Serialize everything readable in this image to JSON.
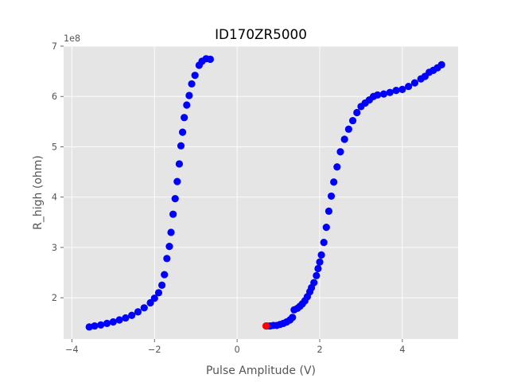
{
  "chart_data": {
    "type": "scatter",
    "title": "ID170ZR5000",
    "xlabel": "Pulse Amplitude (V)",
    "ylabel": "R_high (ohm)",
    "y_offset_text": "1e8",
    "xlim": [
      -4.2,
      5.35
    ],
    "ylim": [
      1.18,
      7.0
    ],
    "x_ticks": [
      -4,
      -2,
      0,
      2,
      4
    ],
    "x_tick_labels": [
      "−4",
      "−2",
      "0",
      "2",
      "4"
    ],
    "y_ticks": [
      2,
      3,
      4,
      5,
      6,
      7
    ],
    "y_tick_labels": [
      "2",
      "3",
      "4",
      "5",
      "6",
      "7"
    ],
    "grid": true,
    "style": "ggplot",
    "colors": {
      "background": "#e5e5e5",
      "grid": "#ffffff",
      "series_main": "#0000ff",
      "series_start": "#ff0000"
    },
    "series": [
      {
        "color": "#0000ff",
        "marker": "circle",
        "points": [
          [
            0.72,
            1.44
          ],
          [
            0.8,
            1.44
          ],
          [
            0.88,
            1.45
          ],
          [
            0.96,
            1.45
          ],
          [
            1.04,
            1.47
          ],
          [
            1.12,
            1.49
          ],
          [
            1.2,
            1.52
          ],
          [
            1.28,
            1.56
          ],
          [
            1.34,
            1.61
          ],
          [
            1.38,
            1.76
          ],
          [
            1.46,
            1.79
          ],
          [
            1.52,
            1.83
          ],
          [
            1.58,
            1.88
          ],
          [
            1.64,
            1.94
          ],
          [
            1.7,
            2.02
          ],
          [
            1.76,
            2.12
          ],
          [
            1.8,
            2.2
          ],
          [
            1.86,
            2.3
          ],
          [
            1.92,
            2.44
          ],
          [
            1.96,
            2.58
          ],
          [
            2.0,
            2.71
          ],
          [
            2.04,
            2.85
          ],
          [
            2.1,
            3.1
          ],
          [
            2.16,
            3.4
          ],
          [
            2.22,
            3.72
          ],
          [
            2.28,
            4.02
          ],
          [
            2.34,
            4.3
          ],
          [
            2.42,
            4.6
          ],
          [
            2.5,
            4.9
          ],
          [
            2.6,
            5.15
          ],
          [
            2.7,
            5.35
          ],
          [
            2.8,
            5.52
          ],
          [
            2.9,
            5.68
          ],
          [
            3.0,
            5.8
          ],
          [
            3.1,
            5.87
          ],
          [
            3.2,
            5.93
          ],
          [
            3.3,
            6.0
          ],
          [
            3.4,
            6.03
          ],
          [
            3.55,
            6.05
          ],
          [
            3.7,
            6.08
          ],
          [
            3.85,
            6.12
          ],
          [
            4.0,
            6.14
          ],
          [
            4.15,
            6.2
          ],
          [
            4.3,
            6.27
          ],
          [
            4.45,
            6.35
          ],
          [
            4.55,
            6.4
          ],
          [
            4.65,
            6.48
          ],
          [
            4.75,
            6.52
          ],
          [
            4.85,
            6.57
          ],
          [
            4.95,
            6.63
          ],
          [
            -3.58,
            1.42
          ],
          [
            -3.45,
            1.44
          ],
          [
            -3.3,
            1.46
          ],
          [
            -3.15,
            1.49
          ],
          [
            -3.0,
            1.52
          ],
          [
            -2.85,
            1.56
          ],
          [
            -2.7,
            1.6
          ],
          [
            -2.55,
            1.65
          ],
          [
            -2.4,
            1.72
          ],
          [
            -2.25,
            1.8
          ],
          [
            -2.1,
            1.9
          ],
          [
            -2.0,
            1.99
          ],
          [
            -1.9,
            2.1
          ],
          [
            -1.82,
            2.25
          ],
          [
            -1.76,
            2.46
          ],
          [
            -1.7,
            2.78
          ],
          [
            -1.64,
            3.02
          ],
          [
            -1.6,
            3.3
          ],
          [
            -1.55,
            3.66
          ],
          [
            -1.5,
            3.97
          ],
          [
            -1.45,
            4.31
          ],
          [
            -1.4,
            4.66
          ],
          [
            -1.36,
            5.02
          ],
          [
            -1.32,
            5.29
          ],
          [
            -1.28,
            5.58
          ],
          [
            -1.22,
            5.83
          ],
          [
            -1.16,
            6.02
          ],
          [
            -1.1,
            6.25
          ],
          [
            -1.02,
            6.42
          ],
          [
            -0.92,
            6.62
          ],
          [
            -0.85,
            6.7
          ],
          [
            -0.75,
            6.75
          ],
          [
            -0.65,
            6.74
          ]
        ]
      },
      {
        "color": "#ff0000",
        "marker": "circle",
        "points": [
          [
            0.7,
            1.44
          ]
        ]
      }
    ]
  }
}
